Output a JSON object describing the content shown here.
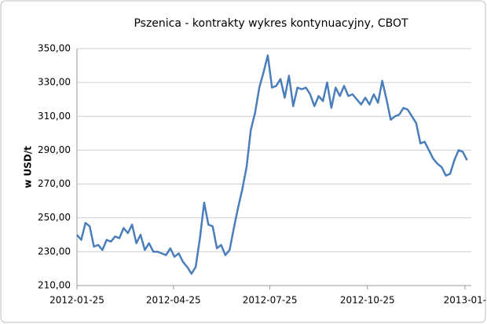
{
  "chart_data": {
    "type": "line",
    "title": "Pszenica - kontrakty wykres kontynuacyjny, CBOT",
    "y_label": "w USD/t",
    "color": "#4a7ebb",
    "grid": true,
    "x": [
      "2012-01-25",
      "2012-01-29",
      "2012-02-02",
      "2012-02-06",
      "2012-02-10",
      "2012-02-14",
      "2012-02-18",
      "2012-02-22",
      "2012-02-26",
      "2012-03-01",
      "2012-03-05",
      "2012-03-09",
      "2012-03-13",
      "2012-03-17",
      "2012-03-21",
      "2012-03-25",
      "2012-03-29",
      "2012-04-02",
      "2012-04-06",
      "2012-04-10",
      "2012-04-14",
      "2012-04-18",
      "2012-04-22",
      "2012-04-26",
      "2012-04-30",
      "2012-05-04",
      "2012-05-08",
      "2012-05-12",
      "2012-05-16",
      "2012-05-20",
      "2012-05-24",
      "2012-05-28",
      "2012-06-01",
      "2012-06-05",
      "2012-06-09",
      "2012-06-13",
      "2012-06-17",
      "2012-06-21",
      "2012-06-25",
      "2012-06-29",
      "2012-07-03",
      "2012-07-07",
      "2012-07-11",
      "2012-07-15",
      "2012-07-19",
      "2012-07-23",
      "2012-07-27",
      "2012-07-31",
      "2012-08-04",
      "2012-08-08",
      "2012-08-12",
      "2012-08-16",
      "2012-08-20",
      "2012-08-24",
      "2012-08-28",
      "2012-09-01",
      "2012-09-05",
      "2012-09-09",
      "2012-09-13",
      "2012-09-17",
      "2012-09-21",
      "2012-09-25",
      "2012-09-29",
      "2012-10-03",
      "2012-10-07",
      "2012-10-11",
      "2012-10-15",
      "2012-10-19",
      "2012-10-23",
      "2012-10-27",
      "2012-10-31",
      "2012-11-04",
      "2012-11-08",
      "2012-11-12",
      "2012-11-16",
      "2012-11-20",
      "2012-11-24",
      "2012-11-28",
      "2012-12-02",
      "2012-12-06",
      "2012-12-10",
      "2012-12-14",
      "2012-12-18",
      "2012-12-22",
      "2012-12-26",
      "2012-12-30",
      "2013-01-03",
      "2013-01-07",
      "2013-01-11",
      "2013-01-15",
      "2013-01-19",
      "2013-01-23",
      "2013-01-27"
    ],
    "values": [
      240,
      237,
      247,
      245,
      233,
      234,
      231,
      237,
      236,
      239,
      238,
      244,
      241,
      246,
      235,
      240,
      231,
      235,
      230,
      230,
      229,
      228,
      232,
      227,
      229,
      224,
      221,
      217,
      221,
      238,
      259,
      246,
      245,
      232,
      234,
      228,
      231,
      244,
      256,
      267,
      280,
      302,
      312,
      327,
      336,
      346,
      327,
      328,
      332,
      321,
      334,
      316,
      327,
      326,
      327,
      323,
      316,
      322,
      319,
      330,
      315,
      327,
      322,
      328,
      322,
      323,
      320,
      317,
      321,
      317,
      323,
      318,
      331,
      320,
      308,
      310,
      311,
      315,
      314,
      310,
      306,
      294,
      295,
      290,
      285,
      282,
      280,
      275,
      276,
      284,
      290,
      289,
      284
    ],
    "xlim": [
      "2012-01-25",
      "2013-01-31"
    ],
    "xticks": [
      "2012-01-25",
      "2012-04-25",
      "2012-07-25",
      "2012-10-25",
      {
        "value": "2013-01-25",
        "label": "2013-01-"
      }
    ],
    "ylim": [
      210,
      350
    ],
    "yticks": [
      {
        "value": 210,
        "label": "210,00"
      },
      {
        "value": 230,
        "label": "230,00"
      },
      {
        "value": 250,
        "label": "250,00"
      },
      {
        "value": 270,
        "label": "270,00"
      },
      {
        "value": 290,
        "label": "290,00"
      },
      {
        "value": 310,
        "label": "310,00"
      },
      {
        "value": 330,
        "label": "330,00"
      },
      {
        "value": 350,
        "label": "350,00"
      }
    ]
  }
}
